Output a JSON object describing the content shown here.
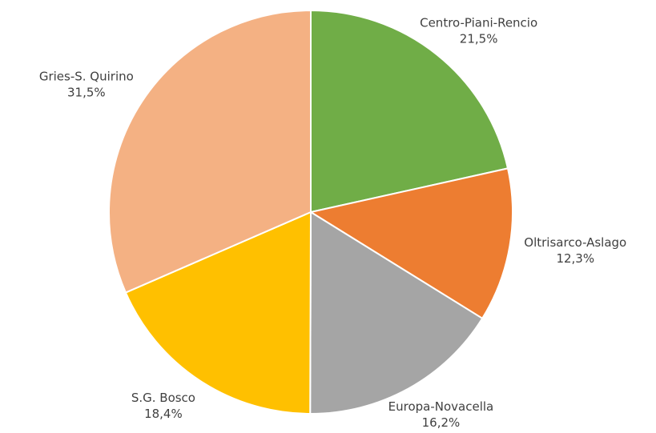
{
  "chart_data": {
    "type": "pie",
    "categories": [
      "Centro-Piani-Rencio",
      "Oltrisarco-Aslago",
      "Europa-Novacella",
      "S.G. Bosco",
      "Gries-S. Quirino"
    ],
    "values": [
      21.5,
      12.3,
      16.2,
      18.4,
      31.5
    ],
    "value_labels": [
      "21,5%",
      "12,3%",
      "16,2%",
      "18,4%",
      "31,5%"
    ],
    "colors": [
      "#70ad47",
      "#ed7d31",
      "#a5a5a5",
      "#ffc000",
      "#f4b183"
    ]
  }
}
